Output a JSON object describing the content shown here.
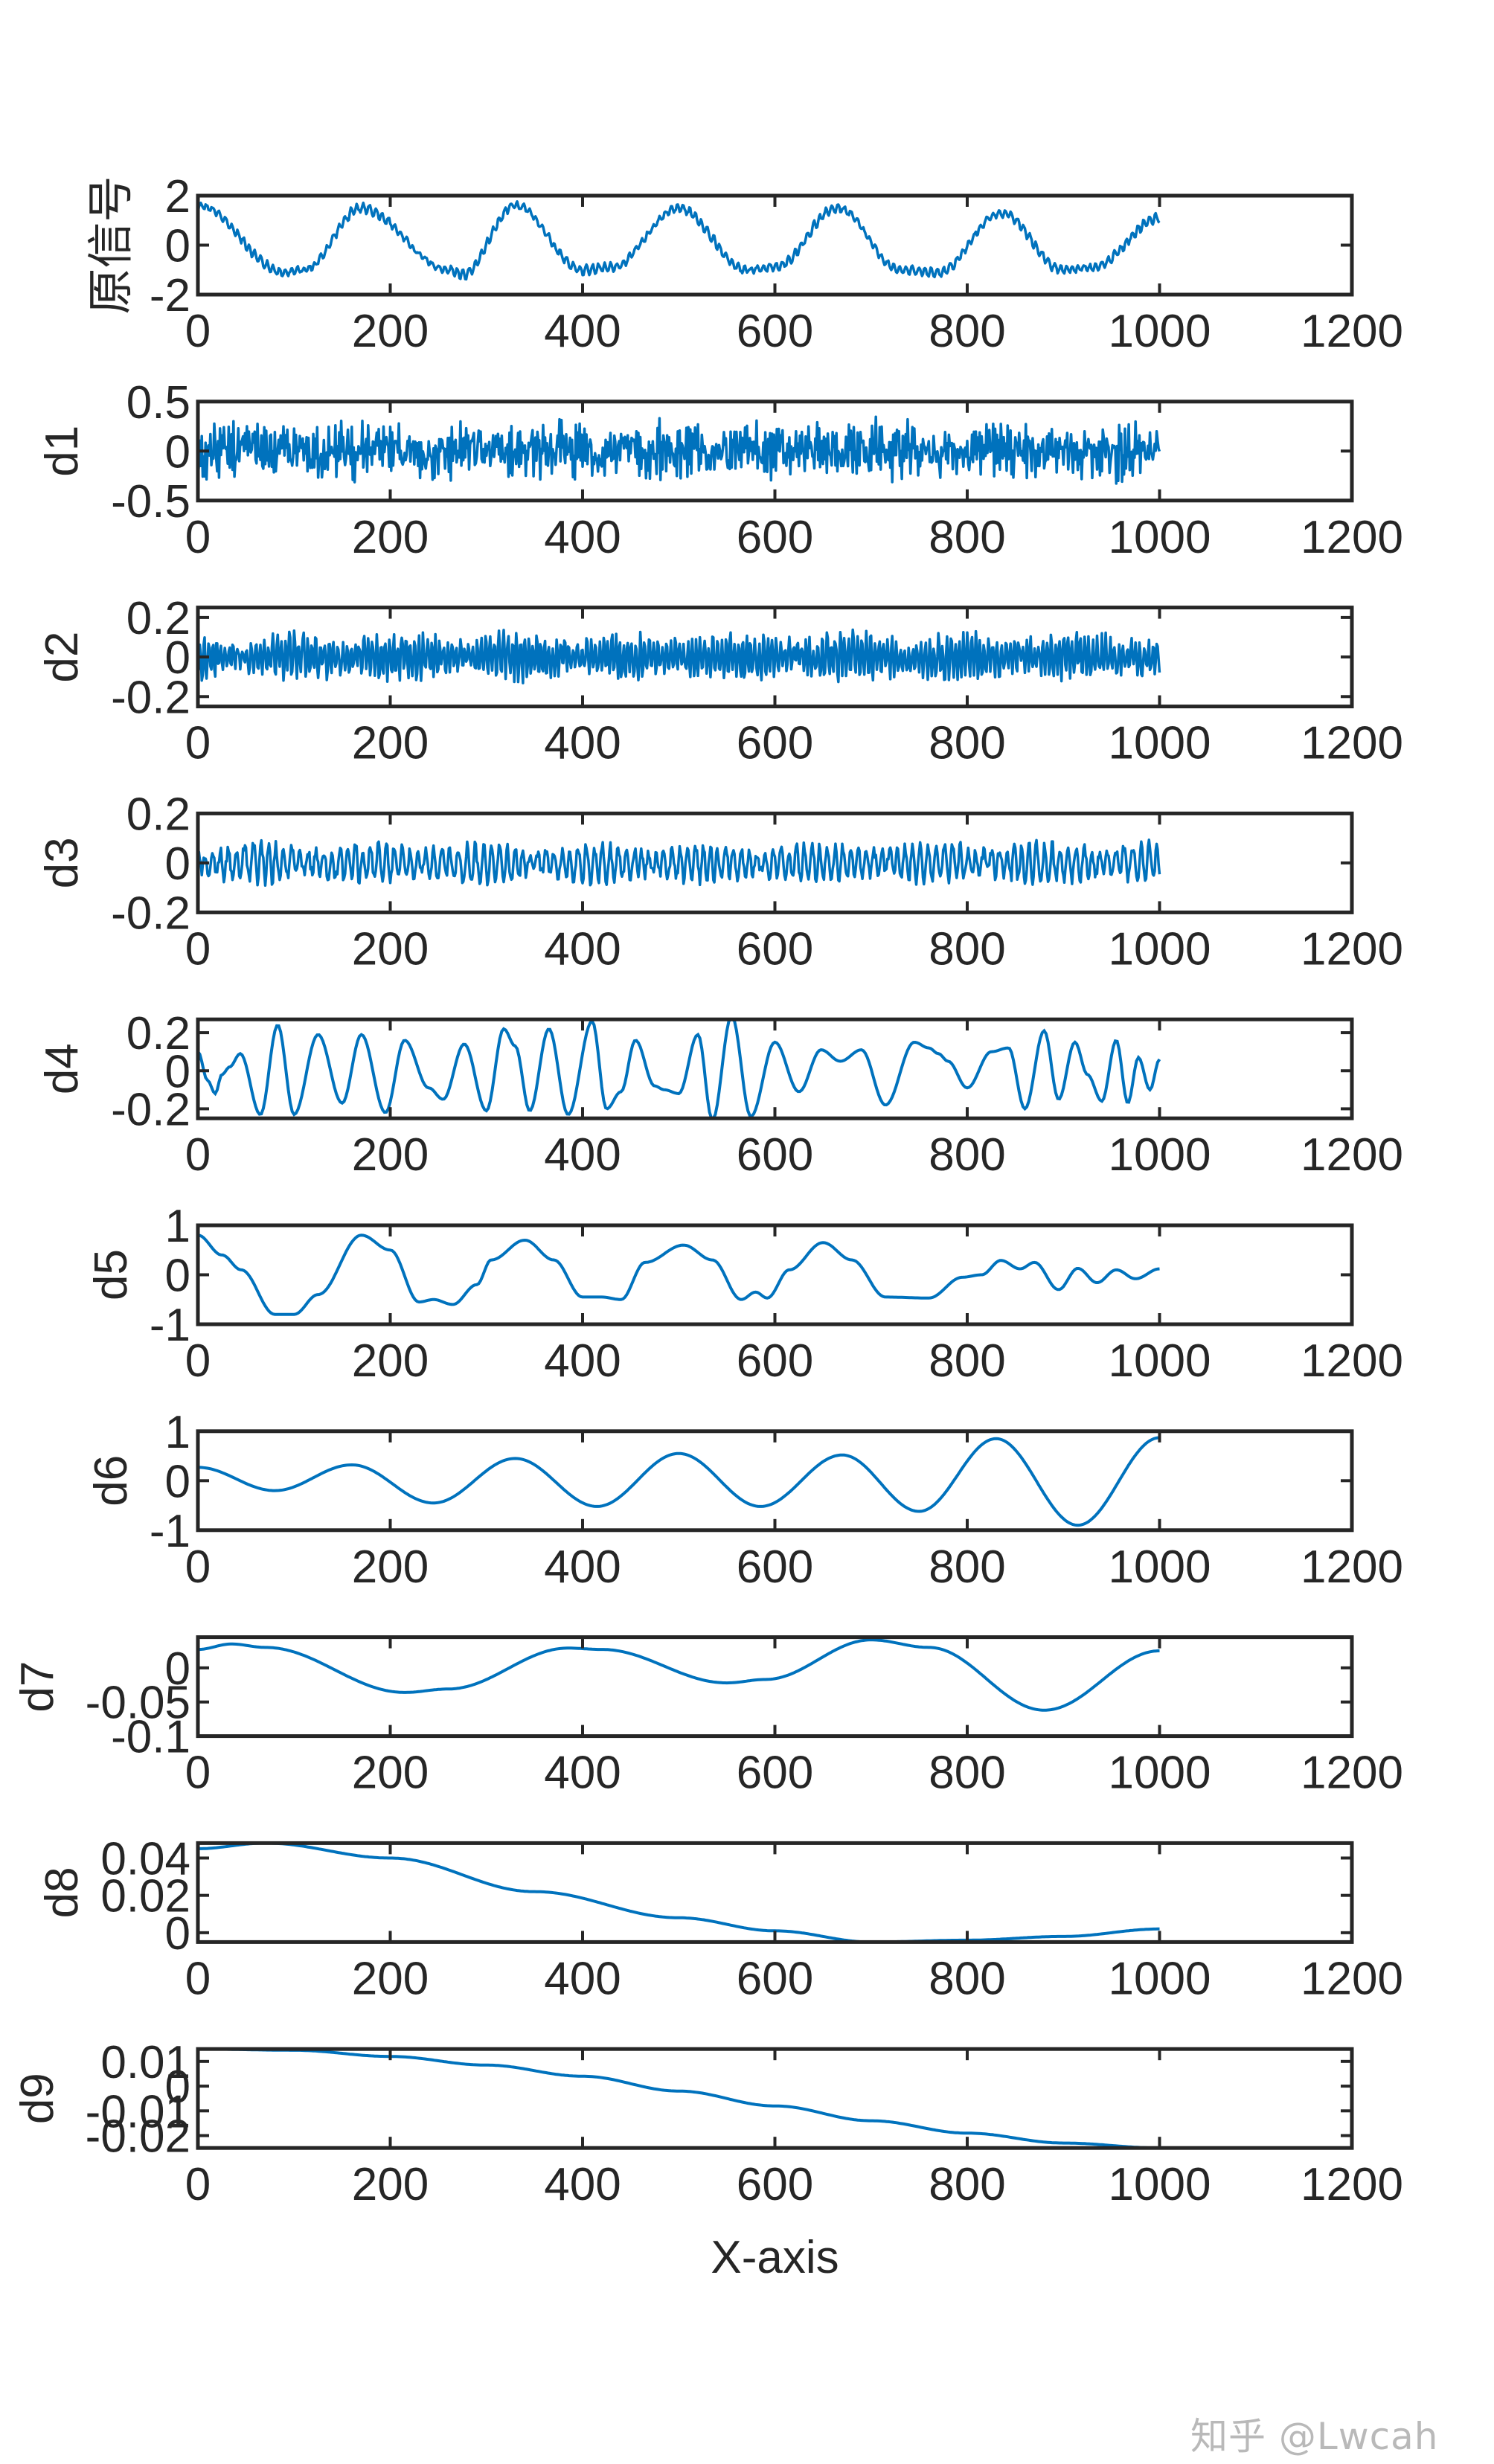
{
  "figure": {
    "xlabel": "X-axis",
    "watermark": "知乎 @Lwcah",
    "line_color": "#0072BD",
    "axis_color": "#262626"
  },
  "chart_data": {
    "type": "line",
    "title": "",
    "xlabel": "X-axis",
    "xlim": [
      0,
      1200
    ],
    "xticks": [
      0,
      200,
      400,
      600,
      800,
      1000,
      1200
    ],
    "xtick_labels": [
      "0",
      "200",
      "400",
      "600",
      "800",
      "1000",
      "1200"
    ],
    "grid": false,
    "legend": null,
    "n_samples": 1000,
    "subplots": [
      {
        "ylabel": "原信号",
        "ylim": [
          -2,
          2
        ],
        "yticks": [
          -2,
          0,
          2
        ],
        "ytick_labels": [
          "-2",
          "0",
          "2"
        ],
        "description": "noisy triangular wave, period ~165, amplitude ~1.2",
        "base_points": [
          [
            0,
            1.6
          ],
          [
            90,
            -1.1
          ],
          [
            110,
            -1.0
          ],
          [
            170,
            1.5
          ],
          [
            260,
            -1.0
          ],
          [
            275,
            -1.2
          ],
          [
            330,
            1.6
          ],
          [
            400,
            -1.0
          ],
          [
            430,
            -0.9
          ],
          [
            500,
            1.5
          ],
          [
            570,
            -1.0
          ],
          [
            600,
            -0.9
          ],
          [
            665,
            1.5
          ],
          [
            730,
            -1.0
          ],
          [
            770,
            -1.1
          ],
          [
            835,
            1.3
          ],
          [
            900,
            -1.0
          ],
          [
            930,
            -0.9
          ],
          [
            1000,
            1.1
          ]
        ],
        "noise": 0.28,
        "noise_freq": 0.9
      },
      {
        "ylabel": "d1",
        "ylim": [
          -0.5,
          0.5
        ],
        "yticks": [
          -0.5,
          0,
          0.5
        ],
        "ytick_labels": [
          "-0.5",
          "0",
          "0.5"
        ],
        "description": "high-frequency noise, amplitude ~0.3",
        "base_points": [
          [
            0,
            0
          ],
          [
            1000,
            0
          ]
        ],
        "noise": 0.32,
        "noise_freq": 2.6
      },
      {
        "ylabel": "d2",
        "ylim": [
          -0.25,
          0.25
        ],
        "yticks": [
          -0.2,
          0,
          0.2
        ],
        "ytick_labels": [
          "-0.2",
          "0",
          "0.2"
        ],
        "description": "oscillation ~0.15 amplitude with bursts",
        "base_points": [
          [
            0,
            0
          ],
          [
            1000,
            0
          ]
        ],
        "noise": 0.17,
        "noise_freq": 1.3
      },
      {
        "ylabel": "d3",
        "ylim": [
          -0.2,
          0.2
        ],
        "yticks": [
          -0.2,
          0,
          0.2
        ],
        "ytick_labels": [
          "-0.2",
          "0",
          "0.2"
        ],
        "description": "oscillation ~0.1 amplitude",
        "base_points": [
          [
            0,
            0
          ],
          [
            1000,
            0
          ]
        ],
        "noise": 0.11,
        "noise_freq": 0.7
      },
      {
        "ylabel": "d4",
        "ylim": [
          -0.25,
          0.27
        ],
        "yticks": [
          -0.2,
          0,
          0.2
        ],
        "ytick_labels": [
          "-0.2",
          "0",
          "0.2"
        ],
        "description": "quasi-periodic oscillation, period ~45",
        "points": [
          [
            0,
            0.1
          ],
          [
            10,
            -0.05
          ],
          [
            18,
            -0.12
          ],
          [
            25,
            -0.02
          ],
          [
            33,
            0.02
          ],
          [
            44,
            0.09
          ],
          [
            65,
            -0.23
          ],
          [
            83,
            0.24
          ],
          [
            100,
            -0.23
          ],
          [
            125,
            0.19
          ],
          [
            150,
            -0.17
          ],
          [
            170,
            0.19
          ],
          [
            195,
            -0.22
          ],
          [
            215,
            0.16
          ],
          [
            240,
            -0.09
          ],
          [
            255,
            -0.15
          ],
          [
            277,
            0.14
          ],
          [
            300,
            -0.21
          ],
          [
            318,
            0.22
          ],
          [
            330,
            0.13
          ],
          [
            345,
            -0.21
          ],
          [
            365,
            0.22
          ],
          [
            385,
            -0.23
          ],
          [
            410,
            0.26
          ],
          [
            425,
            -0.2
          ],
          [
            440,
            -0.11
          ],
          [
            455,
            0.16
          ],
          [
            475,
            -0.08
          ],
          [
            485,
            -0.1
          ],
          [
            500,
            -0.12
          ],
          [
            520,
            0.19
          ],
          [
            535,
            -0.26
          ],
          [
            555,
            0.29
          ],
          [
            575,
            -0.24
          ],
          [
            600,
            0.15
          ],
          [
            625,
            -0.11
          ],
          [
            648,
            0.11
          ],
          [
            668,
            0.05
          ],
          [
            690,
            0.11
          ],
          [
            715,
            -0.18
          ],
          [
            745,
            0.15
          ],
          [
            760,
            0.12
          ],
          [
            770,
            0.09
          ],
          [
            780,
            0.05
          ],
          [
            800,
            -0.09
          ],
          [
            825,
            0.1
          ],
          [
            843,
            0.12
          ],
          [
            860,
            -0.2
          ],
          [
            880,
            0.21
          ],
          [
            895,
            -0.15
          ],
          [
            912,
            0.15
          ],
          [
            925,
            -0.02
          ],
          [
            940,
            -0.16
          ],
          [
            955,
            0.16
          ],
          [
            967,
            -0.17
          ],
          [
            978,
            0.07
          ],
          [
            990,
            -0.1
          ],
          [
            1000,
            0.06
          ]
        ]
      },
      {
        "ylabel": "d5",
        "ylim": [
          -1,
          1
        ],
        "yticks": [
          -1,
          0,
          1
        ],
        "ytick_labels": [
          "-1",
          "0",
          "1"
        ],
        "description": "low-frequency oscillation, decaying near the end",
        "points": [
          [
            0,
            0.8
          ],
          [
            25,
            0.4
          ],
          [
            45,
            0.1
          ],
          [
            80,
            -0.8
          ],
          [
            100,
            -0.8
          ],
          [
            125,
            -0.4
          ],
          [
            170,
            0.8
          ],
          [
            200,
            0.5
          ],
          [
            230,
            -0.55
          ],
          [
            245,
            -0.5
          ],
          [
            265,
            -0.6
          ],
          [
            290,
            -0.2
          ],
          [
            305,
            0.3
          ],
          [
            340,
            0.7
          ],
          [
            370,
            0.3
          ],
          [
            400,
            -0.45
          ],
          [
            420,
            -0.45
          ],
          [
            440,
            -0.5
          ],
          [
            465,
            0.25
          ],
          [
            505,
            0.6
          ],
          [
            535,
            0.3
          ],
          [
            565,
            -0.5
          ],
          [
            580,
            -0.35
          ],
          [
            592,
            -0.47
          ],
          [
            615,
            0.1
          ],
          [
            650,
            0.65
          ],
          [
            680,
            0.3
          ],
          [
            715,
            -0.45
          ],
          [
            760,
            -0.47
          ],
          [
            795,
            -0.05
          ],
          [
            815,
            0.0
          ],
          [
            835,
            0.29
          ],
          [
            855,
            0.12
          ],
          [
            870,
            0.25
          ],
          [
            895,
            -0.3
          ],
          [
            915,
            0.13
          ],
          [
            935,
            -0.16
          ],
          [
            955,
            0.1
          ],
          [
            975,
            -0.08
          ],
          [
            1000,
            0.12
          ]
        ]
      },
      {
        "ylabel": "d6",
        "ylim": [
          -1,
          1
        ],
        "yticks": [
          -1,
          0,
          1
        ],
        "ytick_labels": [
          "-1",
          "0",
          "1"
        ],
        "description": "sinusoid, period ~165, growing amplitude",
        "points": [
          [
            0,
            0.27
          ],
          [
            80,
            -0.2
          ],
          [
            160,
            0.32
          ],
          [
            245,
            -0.45
          ],
          [
            330,
            0.45
          ],
          [
            415,
            -0.52
          ],
          [
            500,
            0.55
          ],
          [
            585,
            -0.52
          ],
          [
            670,
            0.52
          ],
          [
            750,
            -0.62
          ],
          [
            830,
            0.85
          ],
          [
            915,
            -0.9
          ],
          [
            1000,
            0.87
          ]
        ]
      },
      {
        "ylabel": "d7",
        "ylim": [
          -0.1,
          0.045
        ],
        "yticks": [
          -0.1,
          -0.05,
          0
        ],
        "ytick_labels": [
          "-0.1",
          "-0.05",
          "0"
        ],
        "description": "slow oscillation",
        "points": [
          [
            0,
            0.027
          ],
          [
            35,
            0.035
          ],
          [
            70,
            0.03
          ],
          [
            215,
            -0.036
          ],
          [
            260,
            -0.031
          ],
          [
            385,
            0.029
          ],
          [
            420,
            0.027
          ],
          [
            550,
            -0.022
          ],
          [
            590,
            -0.017
          ],
          [
            700,
            0.041
          ],
          [
            760,
            0.03
          ],
          [
            880,
            -0.062
          ],
          [
            1000,
            0.025
          ]
        ]
      },
      {
        "ylabel": "d8",
        "ylim": [
          -0.005,
          0.048
        ],
        "yticks": [
          0,
          0.02,
          0.04
        ],
        "ytick_labels": [
          "0",
          "0.02",
          "0.04"
        ],
        "description": "slow decay to minimum around 700",
        "points": [
          [
            0,
            0.045
          ],
          [
            70,
            0.048
          ],
          [
            200,
            0.04
          ],
          [
            350,
            0.022
          ],
          [
            500,
            0.008
          ],
          [
            600,
            0.001
          ],
          [
            700,
            -0.005
          ],
          [
            800,
            -0.004
          ],
          [
            900,
            -0.002
          ],
          [
            1000,
            0.002
          ]
        ]
      },
      {
        "ylabel": "d9",
        "ylim": [
          -0.025,
          0.015
        ],
        "yticks": [
          -0.02,
          -0.01,
          0,
          0.01
        ],
        "ytick_labels": [
          "-0.02",
          "-0.01",
          "0",
          "0.01"
        ],
        "description": "monotonic decrease",
        "points": [
          [
            0,
            0.015
          ],
          [
            100,
            0.0145
          ],
          [
            200,
            0.012
          ],
          [
            300,
            0.0085
          ],
          [
            400,
            0.004
          ],
          [
            500,
            -0.002
          ],
          [
            600,
            -0.008
          ],
          [
            700,
            -0.014
          ],
          [
            800,
            -0.019
          ],
          [
            900,
            -0.023
          ],
          [
            1000,
            -0.025
          ]
        ]
      }
    ]
  }
}
